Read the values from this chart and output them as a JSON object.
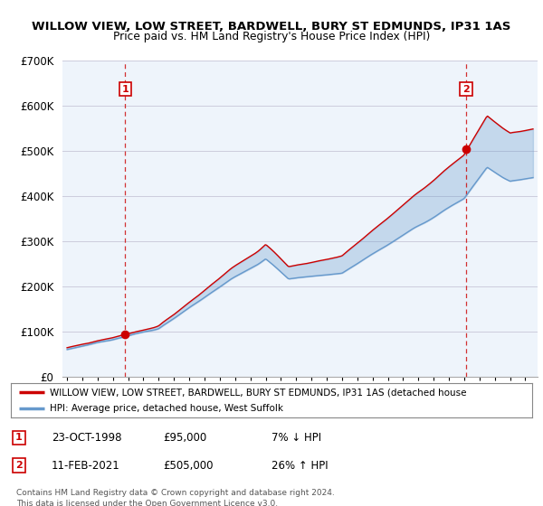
{
  "title_line1": "WILLOW VIEW, LOW STREET, BARDWELL, BURY ST EDMUNDS, IP31 1AS",
  "title_line2": "Price paid vs. HM Land Registry's House Price Index (HPI)",
  "ylim": [
    0,
    700000
  ],
  "yticks": [
    0,
    100000,
    200000,
    300000,
    400000,
    500000,
    600000,
    700000
  ],
  "ytick_labels": [
    "£0",
    "£100K",
    "£200K",
    "£300K",
    "£400K",
    "£500K",
    "£600K",
    "£700K"
  ],
  "sale1_date_label": "23-OCT-1998",
  "sale1_price": 95000,
  "sale1_hpi_pct": "7% ↓ HPI",
  "sale2_date_label": "11-FEB-2021",
  "sale2_price": 505000,
  "sale2_hpi_pct": "26% ↑ HPI",
  "sale1_x": 1998.81,
  "sale2_x": 2021.12,
  "legend_label_red": "WILLOW VIEW, LOW STREET, BARDWELL, BURY ST EDMUNDS, IP31 1AS (detached house",
  "legend_label_blue": "HPI: Average price, detached house, West Suffolk",
  "footnote": "Contains HM Land Registry data © Crown copyright and database right 2024.\nThis data is licensed under the Open Government Licence v3.0.",
  "red_color": "#cc0000",
  "blue_color": "#6699cc",
  "fill_color": "#ddeeff",
  "vline_color": "#cc0000",
  "background_color": "#ffffff",
  "chart_bg_color": "#eef4fb",
  "grid_color": "#ccccdd"
}
